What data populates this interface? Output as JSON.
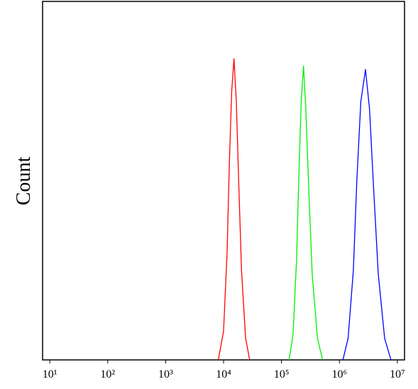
{
  "chart_data": {
    "type": "line",
    "y_label": "Count",
    "x_log": true,
    "xlim": [
      7.5,
      13300000
    ],
    "ylim": [
      0,
      100
    ],
    "xticks": [
      {
        "value": 10,
        "label": "10¹"
      },
      {
        "value": 100,
        "label": "10²"
      },
      {
        "value": 1000,
        "label": "10³"
      },
      {
        "value": 10000,
        "label": "10⁴"
      },
      {
        "value": 100000,
        "label": "10⁵"
      },
      {
        "value": 1000000,
        "label": "10⁶"
      },
      {
        "value": 10000000,
        "label": "10⁷"
      }
    ],
    "series": [
      {
        "color": "#ff0000",
        "x": [
          8100,
          10000,
          11500,
          12600,
          13800,
          15100,
          16600,
          18200,
          20400,
          24000,
          28200
        ],
        "values": [
          0,
          8,
          30,
          55,
          75,
          84,
          72,
          50,
          25,
          6,
          0
        ]
      },
      {
        "color": "#00ee00",
        "x": [
          135000,
          158000,
          182000,
          200000,
          219000,
          240000,
          263000,
          295000,
          339000,
          417000,
          513000
        ],
        "values": [
          0,
          7,
          28,
          52,
          72,
          82,
          70,
          48,
          24,
          6,
          0
        ]
      },
      {
        "color": "#0000ff",
        "x": [
          1150000,
          1410000,
          1740000,
          2000000,
          2340000,
          2820000,
          3310000,
          3890000,
          4680000,
          6030000,
          7760000
        ],
        "values": [
          0,
          6,
          25,
          50,
          72,
          81,
          70,
          48,
          24,
          6,
          0
        ]
      }
    ]
  }
}
